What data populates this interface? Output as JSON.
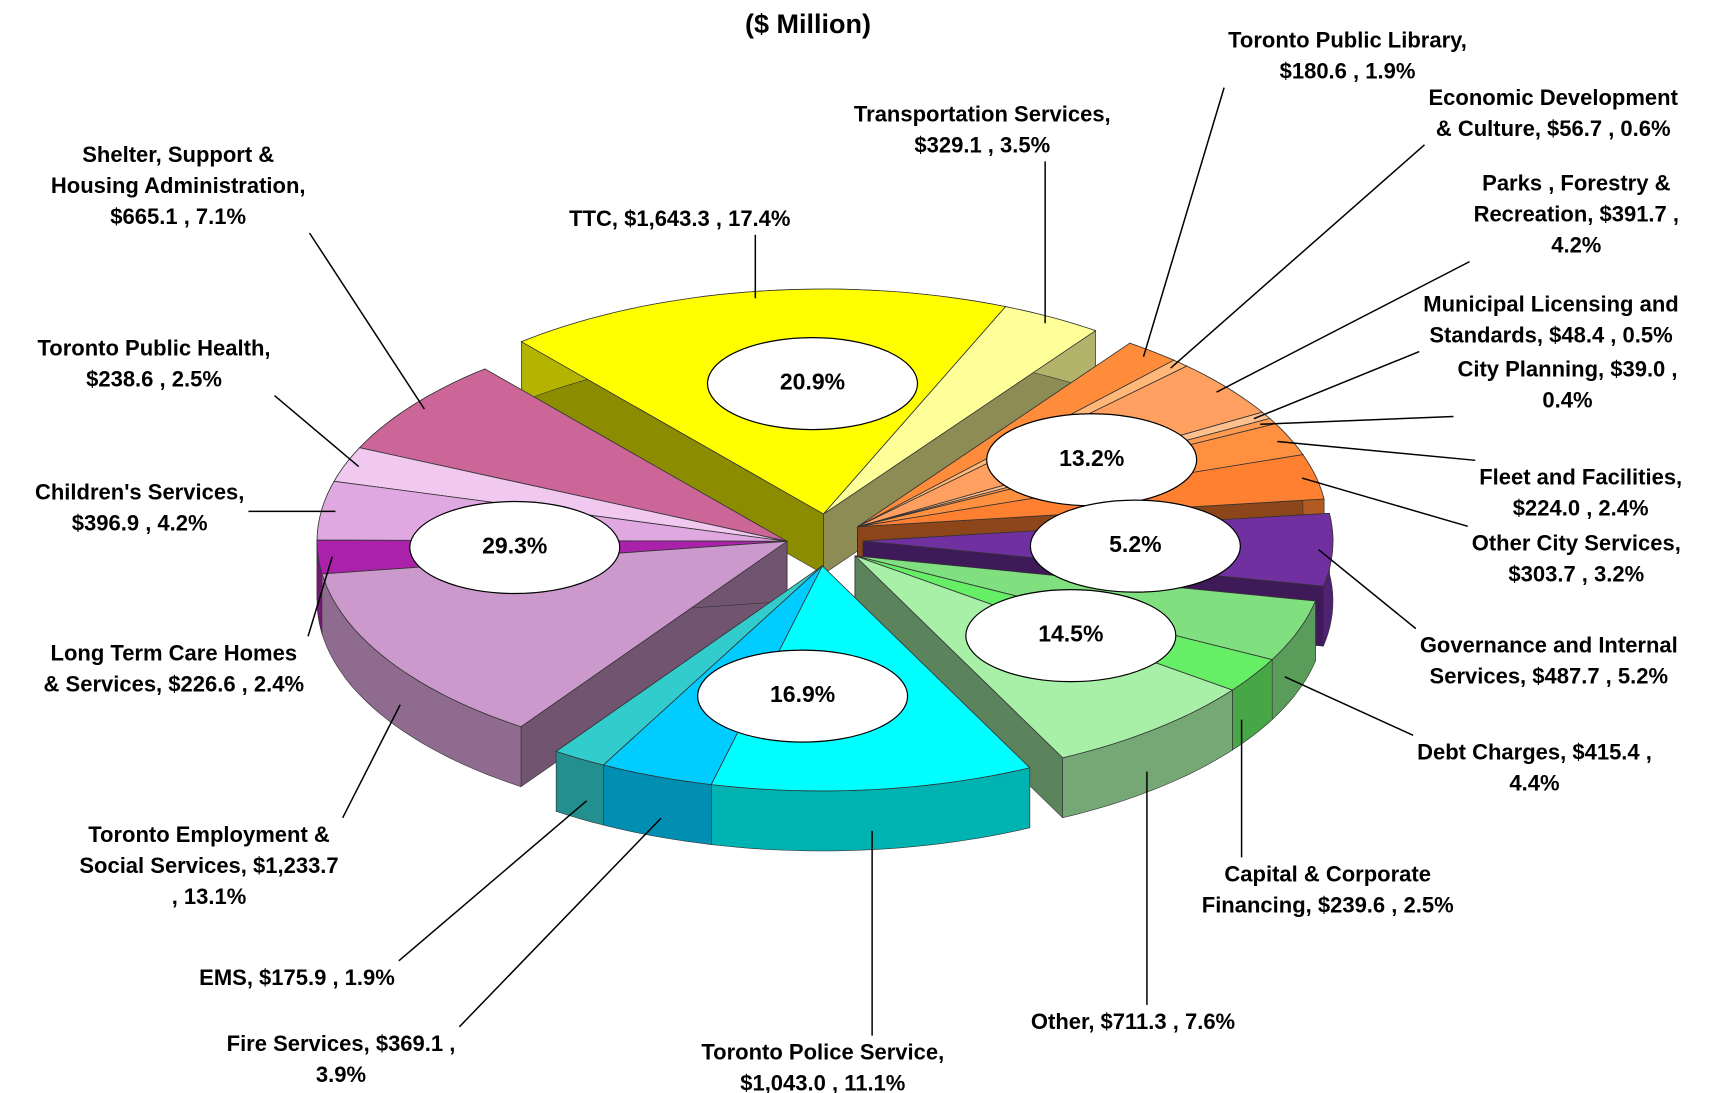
{
  "chart_data": {
    "type": "pie",
    "title": "($ Million)",
    "groups": [
      {
        "value": 20.9,
        "label": "20.9%",
        "slices": [
          {
            "label": [
              "TTC,  $1,643.3 , 17.4%"
            ],
            "value": 1643.3,
            "color": "#ffff00"
          },
          {
            "label": [
              "Transportation Services,",
              "$329.1 , 3.5%"
            ],
            "value": 329.1,
            "color": "#ffff99"
          }
        ]
      },
      {
        "value": 13.2,
        "label": "13.2%",
        "slices": [
          {
            "label": [
              "Toronto Public Library,",
              "$180.6 , 1.9%"
            ],
            "value": 180.6,
            "color": "#ff8c3a"
          },
          {
            "label": [
              "Economic Development",
              "& Culture,  $56.7 , 0.6%"
            ],
            "value": 56.7,
            "color": "#ffb878"
          },
          {
            "label": [
              "Parks , Forestry &",
              "Recreation,  $391.7 ,",
              "4.2%"
            ],
            "value": 391.7,
            "color": "#ffa060"
          },
          {
            "label": [
              "Municipal Licensing and",
              "Standards,  $48.4 , 0.5%"
            ],
            "value": 48.4,
            "color": "#ffc090"
          },
          {
            "label": [
              "City Planning,  $39.0 ,",
              "0.4%"
            ],
            "value": 39.0,
            "color": "#ff9a50"
          },
          {
            "label": [
              "Fleet and Facilities,",
              "$224.0 , 2.4%"
            ],
            "value": 224.0,
            "color": "#ff9040"
          },
          {
            "label": [
              "Other City Services,",
              "$303.7 , 3.2%"
            ],
            "value": 303.7,
            "color": "#ff8030"
          }
        ]
      },
      {
        "value": 5.2,
        "label": "5.2%",
        "slices": [
          {
            "label": [
              "Governance and Internal",
              "Services,  $487.7 , 5.2%"
            ],
            "value": 487.7,
            "color": "#7030a0"
          }
        ]
      },
      {
        "value": 14.5,
        "label": "14.5%",
        "slices": [
          {
            "label": [
              "Debt Charges,  $415.4 ,",
              "4.4%"
            ],
            "value": 415.4,
            "color": "#80e080"
          },
          {
            "label": [
              "Capital & Corporate",
              "Financing,  $239.6 , 2.5%"
            ],
            "value": 239.6,
            "color": "#66ee66"
          },
          {
            "label": [
              "Other,  $711.3 , 7.6%"
            ],
            "value": 711.3,
            "color": "#a8f0a8"
          }
        ]
      },
      {
        "value": 16.9,
        "label": "16.9%",
        "slices": [
          {
            "label": [
              "Toronto Police Service,",
              "$1,043.0 , 11.1%"
            ],
            "value": 1043.0,
            "color": "#00ffff"
          },
          {
            "label": [
              "Fire Services,  $369.1 ,",
              "3.9%"
            ],
            "value": 369.1,
            "color": "#00ccff"
          },
          {
            "label": [
              "EMS,  $175.9 , 1.9%"
            ],
            "value": 175.9,
            "color": "#33cccc"
          }
        ]
      },
      {
        "value": 29.3,
        "label": "29.3%",
        "slices": [
          {
            "label": [
              "Toronto Employment &",
              "Social Services,  $1,233.7",
              ", 13.1%"
            ],
            "value": 1233.7,
            "color": "#cc99cc"
          },
          {
            "label": [
              "Long Term Care Homes",
              "& Services,  $226.6 , 2.4%"
            ],
            "value": 226.6,
            "color": "#aa22aa"
          },
          {
            "label": [
              "Children's Services,",
              "$396.9 , 4.2%"
            ],
            "value": 396.9,
            "color": "#e0a8e0"
          },
          {
            "label": [
              "Toronto Public Health,",
              "$238.6 , 2.5%"
            ],
            "value": 238.6,
            "color": "#f0c8f0"
          },
          {
            "label": [
              "Shelter, Support &",
              "Housing Administration,",
              "$665.1 , 7.1%"
            ],
            "value": 665.1,
            "color": "#cc6699"
          }
        ]
      }
    ]
  }
}
